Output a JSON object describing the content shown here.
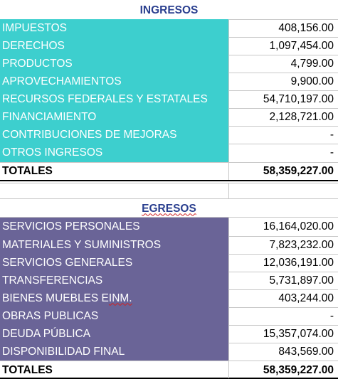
{
  "ingresos": {
    "title": "INGRESOS",
    "rows": [
      {
        "label": "IMPUESTOS",
        "value": "408,156.00"
      },
      {
        "label": "DERECHOS",
        "value": "1,097,454.00"
      },
      {
        "label": "PRODUCTOS",
        "value": "4,799.00"
      },
      {
        "label": "APROVECHAMIENTOS",
        "value": "9,900.00"
      },
      {
        "label": "RECURSOS FEDERALES Y ESTATALES",
        "value": "54,710,197.00"
      },
      {
        "label": "FINANCIAMIENTO",
        "value": "2,128,721.00"
      },
      {
        "label": "CONTRIBUCIONES DE MEJORAS",
        "value": "-"
      },
      {
        "label": "OTROS INGRESOS",
        "value": "-"
      }
    ],
    "total_label": "TOTALES",
    "total_value": "58,359,227.00"
  },
  "egresos": {
    "title": "EGRESOS",
    "rows": [
      {
        "label": "SERVICIOS PERSONALES",
        "value": "16,164,020.00"
      },
      {
        "label": "MATERIALES Y SUMINISTROS",
        "value": "7,823,232.00"
      },
      {
        "label": "SERVICIOS GENERALES",
        "value": "12,036,191.00"
      },
      {
        "label": "TRANSFERENCIAS",
        "value": "5,731,897.00"
      },
      {
        "label_prefix": "BIENES MUEBLES E ",
        "label_flag": "INM.",
        "value": "403,244.00"
      },
      {
        "label": "OBRAS PUBLICAS",
        "value": "-"
      },
      {
        "label": "DEUDA PÚBLICA",
        "value": "15,357,074.00"
      },
      {
        "label": "DISPONIBILIDAD FINAL",
        "value": "843,569.00"
      }
    ],
    "total_label": "TOTALES",
    "total_value": "58,359,227.00"
  },
  "colors": {
    "ingresos_fill": "#3dcfce",
    "egresos_fill": "#6a6497",
    "title_text": "#2a3f8f"
  }
}
